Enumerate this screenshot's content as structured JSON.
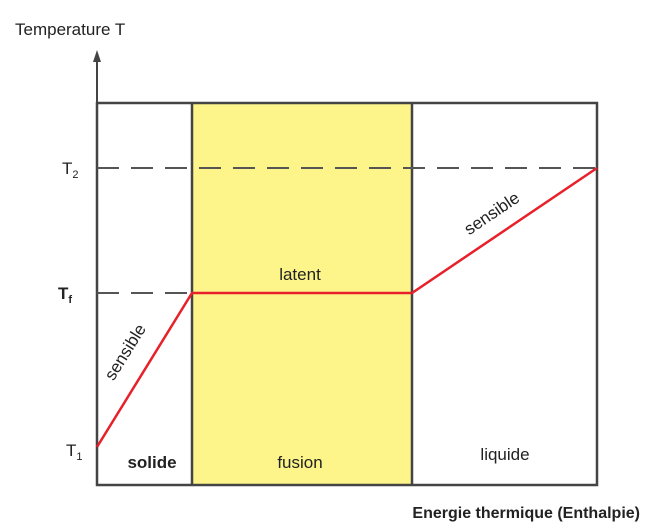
{
  "axes": {
    "y_label": "Temperature T",
    "x_label": "Energie thermique (Enthalpie)"
  },
  "levels": [
    {
      "name": "T",
      "sub": "2"
    },
    {
      "name": "T",
      "sub": "f"
    },
    {
      "name": "T",
      "sub": "1"
    }
  ],
  "phases": [
    "solide",
    "fusion",
    "liquide"
  ],
  "segments": [
    "sensible",
    "latent",
    "sensible"
  ]
}
